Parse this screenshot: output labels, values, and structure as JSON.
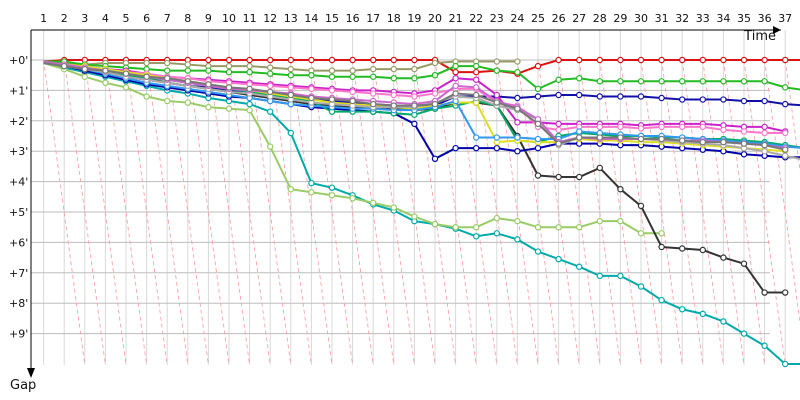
{
  "chart_data": {
    "type": "line",
    "title": "",
    "xlabel": "Time",
    "ylabel": "Gap",
    "x_ticks": [
      "1",
      "2",
      "3",
      "4",
      "5",
      "6",
      "7",
      "8",
      "9",
      "10",
      "11",
      "12",
      "13",
      "14",
      "15",
      "16",
      "17",
      "18",
      "19",
      "20",
      "21",
      "22",
      "23",
      "24",
      "25",
      "26",
      "27",
      "28",
      "29",
      "30",
      "31",
      "32",
      "33",
      "34",
      "35",
      "36",
      "37"
    ],
    "y_ticks": [
      "+0'",
      "+1'",
      "+2'",
      "+3'",
      "+4'",
      "+5'",
      "+6'",
      "+7'",
      "+8'",
      "+9'"
    ],
    "y_unit": "minutes",
    "xlim": [
      0,
      38
    ],
    "ylim": [
      0,
      10
    ],
    "grid": true,
    "series": [
      {
        "color": "#dd1111",
        "x": [
          1,
          2,
          3,
          4,
          5,
          6,
          7,
          8,
          9,
          10,
          11,
          12,
          13,
          14,
          15,
          16,
          17,
          18,
          19,
          20,
          21,
          22,
          23,
          24,
          25,
          26,
          27,
          28,
          29,
          30,
          31,
          32,
          33,
          34,
          35,
          36,
          37,
          38
        ],
        "values": [
          0.05,
          0,
          0,
          0,
          0,
          0,
          0,
          0,
          0,
          0,
          0,
          0,
          0,
          0,
          0,
          0,
          0,
          0,
          0,
          0,
          0.4,
          0.4,
          0.35,
          0.45,
          0.2,
          0,
          0,
          0,
          0,
          0,
          0,
          0,
          0,
          0,
          0,
          0,
          0,
          0
        ]
      },
      {
        "color": "#999966",
        "x": [
          1,
          2,
          3,
          4,
          5,
          6,
          7,
          8,
          9,
          10,
          11,
          12,
          13,
          14,
          15,
          16,
          17,
          18,
          19,
          20,
          21,
          22,
          23,
          24
        ],
        "values": [
          0.05,
          0.1,
          0.15,
          0.1,
          0.1,
          0.1,
          0.1,
          0.15,
          0.2,
          0.2,
          0.2,
          0.25,
          0.3,
          0.35,
          0.35,
          0.35,
          0.3,
          0.3,
          0.3,
          0.1,
          0.05,
          0.05,
          0.05,
          0.05
        ]
      },
      {
        "color": "#22bb22",
        "x": [
          1,
          2,
          3,
          4,
          5,
          6,
          7,
          8,
          9,
          10,
          11,
          12,
          13,
          14,
          15,
          16,
          17,
          18,
          19,
          20,
          21,
          22,
          23,
          24,
          25,
          26,
          27,
          28,
          29,
          30,
          31,
          32,
          33,
          34,
          35,
          36,
          37,
          38
        ],
        "values": [
          0.05,
          0.05,
          0.15,
          0.2,
          0.25,
          0.3,
          0.35,
          0.35,
          0.35,
          0.4,
          0.4,
          0.45,
          0.5,
          0.5,
          0.55,
          0.55,
          0.55,
          0.6,
          0.6,
          0.5,
          0.2,
          0.2,
          0.35,
          0.4,
          0.95,
          0.65,
          0.6,
          0.7,
          0.7,
          0.7,
          0.7,
          0.7,
          0.7,
          0.7,
          0.7,
          0.7,
          0.9,
          1.0
        ]
      },
      {
        "color": "#1111aa",
        "x": [
          1,
          2,
          3,
          4,
          5,
          6,
          7,
          8,
          9,
          10,
          11,
          12,
          13,
          14,
          15,
          16,
          17,
          18,
          19,
          20,
          21,
          22,
          23,
          24,
          25,
          26,
          27,
          28,
          29,
          30,
          31,
          32,
          33,
          34,
          35,
          36,
          37,
          38
        ],
        "values": [
          0.1,
          0.2,
          0.3,
          0.45,
          0.55,
          0.65,
          0.75,
          0.85,
          0.9,
          1.0,
          1.05,
          1.15,
          1.25,
          1.3,
          1.35,
          1.4,
          1.45,
          1.5,
          1.55,
          1.5,
          1.2,
          1.2,
          1.2,
          1.25,
          1.2,
          1.15,
          1.15,
          1.2,
          1.2,
          1.2,
          1.25,
          1.3,
          1.3,
          1.3,
          1.35,
          1.35,
          1.45,
          1.5
        ]
      },
      {
        "color": "#00aaaa",
        "x": [
          1,
          2,
          3,
          4,
          5,
          6,
          7,
          8,
          9,
          10,
          11,
          12,
          13,
          14,
          15,
          16,
          17,
          18,
          19,
          20,
          21,
          22,
          23,
          24,
          25,
          26,
          27,
          28,
          29,
          30,
          31,
          32,
          33,
          34,
          35,
          36,
          37,
          38
        ],
        "values": [
          0.1,
          0.25,
          0.4,
          0.55,
          0.7,
          0.85,
          1.0,
          1.1,
          1.25,
          1.35,
          1.45,
          1.7,
          2.4,
          4.05,
          4.2,
          4.45,
          4.75,
          4.95,
          5.3,
          5.4,
          5.55,
          5.8,
          5.7,
          5.9,
          6.3,
          6.55,
          6.8,
          7.1,
          7.1,
          7.45,
          7.9,
          8.2,
          8.35,
          8.6,
          9.0,
          9.4,
          10.0,
          10.0
        ]
      },
      {
        "color": "#99cc66",
        "x": [
          1,
          2,
          3,
          4,
          5,
          6,
          7,
          8,
          9,
          10,
          11,
          12,
          13,
          14,
          15,
          16,
          17,
          18,
          19,
          20,
          21,
          22,
          23,
          24,
          25,
          26,
          27,
          28,
          29,
          30,
          31
        ],
        "values": [
          0.1,
          0.3,
          0.55,
          0.75,
          0.9,
          1.2,
          1.35,
          1.4,
          1.55,
          1.6,
          1.65,
          2.85,
          4.25,
          4.35,
          4.45,
          4.55,
          4.7,
          4.85,
          5.15,
          5.4,
          5.5,
          5.5,
          5.2,
          5.3,
          5.5,
          5.5,
          5.5,
          5.3,
          5.3,
          5.7,
          5.7
        ]
      },
      {
        "color": "#333333",
        "x": [
          1,
          2,
          3,
          4,
          5,
          6,
          7,
          8,
          9,
          10,
          11,
          12,
          13,
          14,
          15,
          16,
          17,
          18,
          19,
          20,
          21,
          22,
          23,
          24,
          25,
          26,
          27,
          28,
          29,
          30,
          31,
          32,
          33,
          34,
          35,
          36,
          37
        ],
        "values": [
          0.1,
          0.2,
          0.3,
          0.4,
          0.5,
          0.6,
          0.75,
          0.85,
          0.95,
          1.05,
          1.15,
          1.25,
          1.35,
          1.45,
          1.5,
          1.55,
          1.6,
          1.6,
          1.65,
          1.6,
          1.4,
          1.4,
          1.5,
          2.5,
          3.8,
          3.85,
          3.85,
          3.55,
          4.25,
          4.8,
          6.15,
          6.2,
          6.25,
          6.5,
          6.7,
          7.65,
          7.65
        ]
      },
      {
        "color": "#0000aa",
        "x": [
          1,
          2,
          3,
          4,
          5,
          6,
          7,
          8,
          9,
          10,
          11,
          12,
          13,
          14,
          15,
          16,
          17,
          18,
          19,
          20,
          21,
          22,
          23,
          24,
          25,
          26,
          27,
          28,
          29,
          30,
          31,
          32,
          33,
          34,
          35,
          36,
          37,
          38
        ],
        "values": [
          0.05,
          0.2,
          0.35,
          0.5,
          0.65,
          0.8,
          0.9,
          1.0,
          1.1,
          1.2,
          1.25,
          1.35,
          1.45,
          1.55,
          1.6,
          1.65,
          1.7,
          1.75,
          2.1,
          3.25,
          2.9,
          2.9,
          2.9,
          3.0,
          2.9,
          2.75,
          2.75,
          2.75,
          2.8,
          2.8,
          2.85,
          2.9,
          2.95,
          3.0,
          3.1,
          3.15,
          3.2,
          3.2
        ]
      },
      {
        "color": "#cc22cc",
        "x": [
          1,
          2,
          3,
          4,
          5,
          6,
          7,
          8,
          9,
          10,
          11,
          12,
          13,
          14,
          15,
          16,
          17,
          18,
          19,
          20,
          21,
          22,
          23,
          24,
          25,
          26,
          27,
          28,
          29,
          30,
          31,
          32,
          33,
          34,
          35,
          36,
          37
        ],
        "values": [
          0.1,
          0.15,
          0.2,
          0.3,
          0.35,
          0.45,
          0.55,
          0.6,
          0.65,
          0.7,
          0.75,
          0.8,
          0.85,
          0.9,
          0.95,
          1.0,
          1.0,
          1.05,
          1.1,
          1.0,
          0.6,
          0.65,
          1.15,
          2.05,
          2.05,
          2.1,
          2.1,
          2.1,
          2.1,
          2.15,
          2.1,
          2.1,
          2.1,
          2.15,
          2.2,
          2.2,
          2.35
        ]
      },
      {
        "color": "#ff77cc",
        "x": [
          1,
          2,
          3,
          4,
          5,
          6,
          7,
          8,
          9,
          10,
          11,
          12,
          13,
          14,
          15,
          16,
          17,
          18,
          19,
          20,
          21,
          22,
          23,
          24,
          25,
          26,
          27,
          28,
          29,
          30,
          31,
          32,
          33,
          34,
          35,
          36,
          37
        ],
        "values": [
          0.1,
          0.15,
          0.25,
          0.3,
          0.4,
          0.45,
          0.55,
          0.6,
          0.7,
          0.75,
          0.8,
          0.85,
          0.9,
          0.95,
          1.0,
          1.05,
          1.1,
          1.15,
          1.2,
          1.1,
          0.95,
          0.95,
          1.4,
          1.5,
          2.2,
          2.3,
          2.2,
          2.2,
          2.2,
          2.25,
          2.2,
          2.2,
          2.2,
          2.3,
          2.35,
          2.4,
          2.4
        ]
      },
      {
        "color": "#00aa66",
        "x": [
          1,
          2,
          3,
          4,
          5,
          6,
          7,
          8,
          9,
          10,
          11,
          12,
          13,
          14,
          15,
          16,
          17,
          18,
          19,
          20,
          21,
          22,
          23,
          24,
          25,
          26,
          27,
          28,
          29,
          30,
          31,
          32,
          33,
          34,
          35,
          36,
          37,
          38
        ],
        "values": [
          0.1,
          0.2,
          0.3,
          0.4,
          0.5,
          0.6,
          0.65,
          0.75,
          0.85,
          0.95,
          1.05,
          1.15,
          1.25,
          1.35,
          1.7,
          1.7,
          1.7,
          1.75,
          1.8,
          1.6,
          1.5,
          1.35,
          1.5,
          2.65,
          2.7,
          2.5,
          2.4,
          2.45,
          2.5,
          2.5,
          2.55,
          2.55,
          2.6,
          2.6,
          2.65,
          2.7,
          2.8,
          2.9
        ]
      },
      {
        "color": "#dddd22",
        "x": [
          1,
          2,
          3,
          4,
          5,
          6,
          7,
          8,
          9,
          10,
          11,
          12,
          13,
          14,
          15,
          16,
          17,
          18,
          19,
          20,
          21,
          22,
          23,
          24,
          25,
          26,
          27,
          28,
          29,
          30,
          31,
          32,
          33,
          34,
          35,
          36,
          37
        ],
        "values": [
          0.1,
          0.15,
          0.2,
          0.3,
          0.4,
          0.5,
          0.6,
          0.7,
          0.8,
          0.9,
          1.0,
          1.1,
          1.2,
          1.3,
          1.4,
          1.45,
          1.5,
          1.55,
          1.6,
          1.5,
          1.4,
          1.4,
          2.7,
          2.65,
          2.7,
          2.7,
          2.6,
          2.65,
          2.65,
          2.7,
          2.7,
          2.75,
          2.8,
          2.85,
          2.9,
          2.95,
          3.0
        ]
      },
      {
        "color": "#3399ee",
        "x": [
          1,
          2,
          3,
          4,
          5,
          6,
          7,
          8,
          9,
          10,
          11,
          12,
          13,
          14,
          15,
          16,
          17,
          18,
          19,
          20,
          21,
          22,
          23,
          24,
          25,
          26,
          27,
          28,
          29,
          30,
          31,
          32,
          33,
          34,
          35,
          36,
          37,
          38
        ],
        "values": [
          0.1,
          0.2,
          0.3,
          0.45,
          0.6,
          0.75,
          0.85,
          0.95,
          1.05,
          1.15,
          1.25,
          1.35,
          1.45,
          1.5,
          1.55,
          1.6,
          1.6,
          1.65,
          1.65,
          1.55,
          1.35,
          2.55,
          2.55,
          2.55,
          2.6,
          2.6,
          2.35,
          2.4,
          2.45,
          2.5,
          2.5,
          2.55,
          2.6,
          2.65,
          2.7,
          2.75,
          2.85,
          2.9
        ]
      },
      {
        "color": "#aaaaaa",
        "x": [
          1,
          2,
          3,
          4,
          5,
          6,
          7,
          8,
          9,
          10,
          11,
          12,
          13,
          14,
          15,
          16,
          17,
          18,
          19,
          20,
          21,
          22,
          23,
          24,
          25,
          26,
          27,
          28,
          29,
          30,
          31,
          32,
          33,
          34,
          35,
          36,
          37,
          38
        ],
        "values": [
          0.1,
          0.2,
          0.3,
          0.4,
          0.55,
          0.65,
          0.75,
          0.85,
          0.95,
          1.05,
          1.1,
          1.2,
          1.3,
          1.4,
          1.45,
          1.5,
          1.55,
          1.55,
          1.55,
          1.4,
          1.2,
          1.25,
          1.5,
          1.65,
          1.95,
          2.8,
          2.55,
          2.55,
          2.6,
          2.6,
          2.65,
          2.7,
          2.75,
          2.8,
          2.9,
          3.0,
          3.15,
          3.3
        ]
      },
      {
        "color": "#cc66cc",
        "x": [
          1,
          2,
          3,
          4,
          5,
          6,
          7,
          8,
          9,
          10,
          11,
          12,
          13,
          14,
          15,
          16,
          17,
          18,
          19,
          20,
          21,
          22,
          23,
          24,
          25,
          26,
          27,
          28,
          29,
          30,
          31,
          32,
          33,
          34,
          35,
          36,
          37
        ],
        "values": [
          0.05,
          0.15,
          0.25,
          0.35,
          0.45,
          0.55,
          0.65,
          0.75,
          0.85,
          0.95,
          1.0,
          1.05,
          1.1,
          1.2,
          1.25,
          1.3,
          1.35,
          1.4,
          1.45,
          1.35,
          0.85,
          0.9,
          1.35,
          1.55,
          1.95,
          2.7,
          2.55,
          2.6,
          2.6,
          2.6,
          2.6,
          2.65,
          2.65,
          2.7,
          2.75,
          2.8,
          2.9
        ]
      },
      {
        "color": "#777777",
        "x": [
          1,
          2,
          3,
          4,
          5,
          6,
          7,
          8,
          9,
          10,
          11,
          12,
          13,
          14,
          15,
          16,
          17,
          18,
          19,
          20,
          21,
          22,
          23,
          24,
          25,
          26,
          27,
          28,
          29,
          30,
          31,
          32,
          33,
          34,
          35,
          36,
          37
        ],
        "values": [
          0.1,
          0.2,
          0.3,
          0.35,
          0.45,
          0.55,
          0.6,
          0.7,
          0.8,
          0.9,
          0.95,
          1.05,
          1.15,
          1.25,
          1.3,
          1.35,
          1.45,
          1.5,
          1.5,
          1.45,
          1.1,
          1.15,
          1.4,
          1.6,
          2.1,
          2.75,
          2.55,
          2.55,
          2.55,
          2.6,
          2.6,
          2.65,
          2.7,
          2.7,
          2.75,
          2.8,
          2.95
        ]
      }
    ]
  }
}
